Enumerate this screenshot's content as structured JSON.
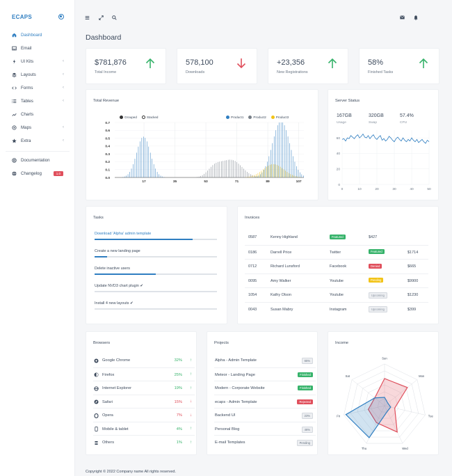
{
  "brand": "ECAPS",
  "sidebar": {
    "items": [
      {
        "label": "Dashboard",
        "icon": "home-icon",
        "active": true,
        "chevron": false
      },
      {
        "label": "Email",
        "icon": "inbox-icon",
        "active": false,
        "chevron": false
      },
      {
        "label": "UI Kits",
        "icon": "bolt-icon",
        "active": false,
        "chevron": true
      },
      {
        "label": "Layouts",
        "icon": "layers-icon",
        "active": false,
        "chevron": true
      },
      {
        "label": "Forms",
        "icon": "code-icon",
        "active": false,
        "chevron": true
      },
      {
        "label": "Tables",
        "icon": "list-icon",
        "active": false,
        "chevron": true
      },
      {
        "label": "Charts",
        "icon": "chart-line-icon",
        "active": false,
        "chevron": false
      },
      {
        "label": "Maps",
        "icon": "map-marker-icon",
        "active": false,
        "chevron": true
      },
      {
        "label": "Extra",
        "icon": "star-icon",
        "active": false,
        "chevron": true
      }
    ],
    "secondary": [
      {
        "label": "Documentation",
        "icon": "help-circle-icon"
      },
      {
        "label": "Changelog",
        "icon": "globe-icon",
        "badge": "1.0"
      }
    ]
  },
  "topbar": {
    "left_icons": [
      "menu-icon",
      "expand-icon",
      "search-icon"
    ],
    "right_icons": [
      "envelope-icon",
      "bell-icon"
    ]
  },
  "page_title": "Dashboard",
  "stats": [
    {
      "value": "$781,876",
      "label": "Total Income",
      "trend": "up",
      "color": "#37b36b"
    },
    {
      "value": "578,100",
      "label": "Downloads",
      "trend": "down",
      "color": "#e04f5c"
    },
    {
      "value": "+23,356",
      "label": "New Registrations",
      "trend": "up",
      "color": "#37b36b"
    },
    {
      "value": "58%",
      "label": "Finished Tasks",
      "trend": "up",
      "color": "#37b36b"
    }
  ],
  "revenue": {
    "title": "Total Revenue",
    "toggle_grouped": "Grouped",
    "toggle_stacked": "Stacked",
    "legend": [
      {
        "name": "Product1",
        "color": "#2f7ec1"
      },
      {
        "name": "Product2",
        "color": "#777f88"
      },
      {
        "name": "Product3",
        "color": "#f2c317"
      }
    ],
    "y_ticks": [
      "0.0",
      "0.1",
      "0.2",
      "0.3",
      "0.4",
      "0.5",
      "0.6",
      "0.7"
    ],
    "x_ticks": [
      "17",
      "35",
      "53",
      "71",
      "89",
      "107"
    ]
  },
  "server": {
    "title": "Server Status",
    "stats": [
      {
        "value": "167GB",
        "label": "Usage"
      },
      {
        "value": "320GB",
        "label": "Swap"
      },
      {
        "value": "57.4%",
        "label": "CPU"
      }
    ],
    "y_ticks": [
      "0",
      "20",
      "40",
      "60"
    ],
    "x_ticks": [
      "0",
      "10",
      "20",
      "30",
      "40",
      "50"
    ]
  },
  "tasks": {
    "title": "Tasks",
    "items": [
      {
        "label": "Download 'Alpha' admin template",
        "progress": 0.8,
        "done": false
      },
      {
        "label": "Create a new landing page",
        "progress": 0.1,
        "done": false
      },
      {
        "label": "Delete inactive users",
        "progress": 0.5,
        "done": false
      },
      {
        "label": "Update NVD3 chart plugin",
        "progress": 0.0,
        "done": true
      },
      {
        "label": "Install 4 new layouts",
        "progress": 0.0,
        "done": true
      }
    ]
  },
  "invoices": {
    "title": "Invoices",
    "rows": [
      {
        "id": "0587",
        "name": "Kenny Highland",
        "source": "",
        "status": "Featured",
        "status_type": "featured",
        "amount": "$427"
      },
      {
        "id": "0186",
        "name": "Darrell Price",
        "source": "Twitter",
        "status": "Featured",
        "status_type": "featured",
        "amount": "$1714"
      },
      {
        "id": "0712",
        "name": "Richard Lunsford",
        "source": "Facebook",
        "status": "Denied",
        "status_type": "denied",
        "amount": "$665"
      },
      {
        "id": "0095",
        "name": "Amy Walker",
        "source": "Youtube",
        "status": "Pending",
        "status_type": "pending",
        "amount": "$9900"
      },
      {
        "id": "1054",
        "name": "Kathy Olson",
        "source": "Youtube",
        "status": "Upcoming",
        "status_type": "upcoming",
        "amount": "$1230"
      },
      {
        "id": "0043",
        "name": "Susan Mabry",
        "source": "Instagram",
        "status": "Upcoming",
        "status_type": "upcoming",
        "amount": "$399"
      }
    ]
  },
  "browsers": {
    "title": "Browsers",
    "rows": [
      {
        "name": "Google Chrome",
        "icon": "chrome-icon",
        "pct": "32%",
        "trend": "up",
        "color": "#37b36b"
      },
      {
        "name": "Firefox",
        "icon": "firefox-icon",
        "pct": "25%",
        "trend": "up",
        "color": "#37b36b"
      },
      {
        "name": "Internet Explorer",
        "icon": "ie-icon",
        "pct": "19%",
        "trend": "up",
        "color": "#37b36b"
      },
      {
        "name": "Safari",
        "icon": "safari-icon",
        "pct": "15%",
        "trend": "down",
        "color": "#e04f5c"
      },
      {
        "name": "Opera",
        "icon": "opera-icon",
        "pct": "7%",
        "trend": "down",
        "color": "#e04f5c"
      },
      {
        "name": "Mobile & tablet",
        "icon": "mobile-icon",
        "pct": "4%",
        "trend": "up",
        "color": "#37b36b"
      },
      {
        "name": "Others",
        "icon": "other-icon",
        "pct": "1%",
        "trend": "up",
        "color": "#37b36b"
      }
    ]
  },
  "projects": {
    "title": "Projects",
    "rows": [
      {
        "name": "Alpha - Admin Template",
        "badge": "65%",
        "type": "plain"
      },
      {
        "name": "Meteor - Landing Page",
        "badge": "Finished",
        "type": "featured"
      },
      {
        "name": "Modern - Corporate Website",
        "badge": "Finished",
        "type": "featured"
      },
      {
        "name": "ecaps - Admin Template",
        "badge": "Rejected",
        "type": "denied"
      },
      {
        "name": "Backend UI",
        "badge": "23%",
        "type": "plain"
      },
      {
        "name": "Personal Blog",
        "badge": "46%",
        "type": "plain"
      },
      {
        "name": "E-mail Templates",
        "badge": "Pending",
        "type": "plain"
      }
    ]
  },
  "income": {
    "title": "Income",
    "axes": [
      "Sun",
      "Mon",
      "Tue",
      "Wed",
      "Thu",
      "Fri",
      "Sat"
    ]
  },
  "footer": "Copyright © 2022 Company name All rights reserved.",
  "chart_data": [
    {
      "type": "bar",
      "title": "Total Revenue",
      "x_range": [
        0,
        110
      ],
      "ylim": [
        0,
        0.7
      ],
      "series": [
        {
          "name": "Product1",
          "peaks": [
            {
              "x": 17,
              "height": 0.52,
              "width": 4
            },
            {
              "x": 97,
              "height": 0.72,
              "width": 5
            }
          ]
        },
        {
          "name": "Product2",
          "peaks": [
            {
              "x": 68,
              "height": 0.22,
              "width": 6
            },
            {
              "x": 58,
              "height": 0.12,
              "width": 4
            }
          ]
        },
        {
          "name": "Product3",
          "peaks": [
            {
              "x": 92,
              "height": 0.17,
              "width": 6
            }
          ]
        }
      ]
    },
    {
      "type": "line",
      "title": "Server Status",
      "ylim": [
        0,
        70
      ],
      "xlim": [
        0,
        50
      ],
      "x": [
        0,
        1,
        2,
        3,
        4,
        5,
        6,
        7,
        8,
        9,
        10,
        11,
        12,
        13,
        14,
        15,
        16,
        17,
        18,
        19,
        20,
        21,
        22,
        23,
        24,
        25,
        26,
        27,
        28,
        29,
        30,
        31,
        32,
        33,
        34,
        35,
        36,
        37,
        38,
        39,
        40,
        41,
        42,
        43,
        44,
        45,
        46,
        47,
        48,
        49,
        50
      ],
      "values": [
        58,
        59,
        56,
        60,
        59,
        63,
        61,
        59,
        62,
        64,
        60,
        62,
        65,
        61,
        60,
        63,
        59,
        62,
        64,
        60,
        58,
        61,
        63,
        57,
        59,
        56,
        58,
        62,
        60,
        57,
        55,
        59,
        61,
        58,
        56,
        60,
        57,
        55,
        58,
        56,
        60,
        57,
        55,
        58,
        54,
        56,
        58,
        55,
        53,
        57,
        55
      ]
    },
    {
      "type": "radar",
      "title": "Income",
      "axes": [
        "Sun",
        "Mon",
        "Tue",
        "Wed",
        "Thu",
        "Fri",
        "Sat"
      ],
      "range": [
        0,
        100
      ],
      "series": [
        {
          "name": "red",
          "color": "#e04f5c",
          "values": [
            65,
            70,
            25,
            70,
            45,
            40,
            30
          ]
        },
        {
          "name": "blue",
          "color": "#2f7ec1",
          "values": [
            20,
            10,
            15,
            15,
            85,
            95,
            30
          ]
        }
      ]
    }
  ]
}
